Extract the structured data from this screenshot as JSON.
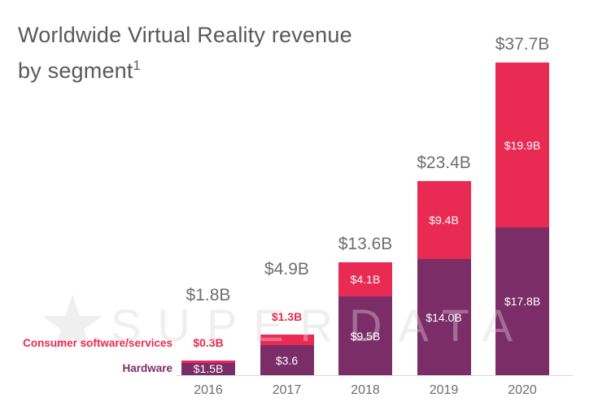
{
  "title": {
    "line1": "Worldwide Virtual Reality revenue",
    "line2": "by segment",
    "superscript": "1"
  },
  "legend": {
    "consumer": "Consumer software/services",
    "hardware": "Hardware"
  },
  "watermark": {
    "star_icon": "★",
    "text": "SUPERDATA"
  },
  "colors": {
    "consumer": "#e92a53",
    "hardware": "#7b2d68",
    "title_text": "#58595b",
    "axis_text": "#6d6e71",
    "watermark": "#e9e9e9"
  },
  "chart_data": {
    "type": "bar",
    "stacked": true,
    "title": "Worldwide Virtual Reality revenue by segment¹",
    "categories": [
      "2016",
      "2017",
      "2018",
      "2019",
      "2020"
    ],
    "series": [
      {
        "name": "Hardware",
        "color": "#7b2d68",
        "values": [
          1.5,
          3.6,
          9.5,
          14.0,
          17.8
        ],
        "labels": [
          "$1.5B",
          "$3.6",
          "$9.5B",
          "$14.0B",
          "$17.8B"
        ]
      },
      {
        "name": "Consumer software/services",
        "color": "#e92a53",
        "values": [
          0.3,
          1.3,
          4.1,
          9.4,
          19.9
        ],
        "labels": [
          "$0.3B",
          "$1.3B",
          "$4.1B",
          "$9.4B",
          "$19.9B"
        ]
      }
    ],
    "totals": [
      1.8,
      4.9,
      13.6,
      23.4,
      37.7
    ],
    "total_labels": [
      "$1.8B",
      "$4.9B",
      "$13.6B",
      "$23.4B",
      "$37.7B"
    ],
    "xlabel": "",
    "ylabel": "",
    "legend_position": "left-bottom",
    "grid": false
  }
}
